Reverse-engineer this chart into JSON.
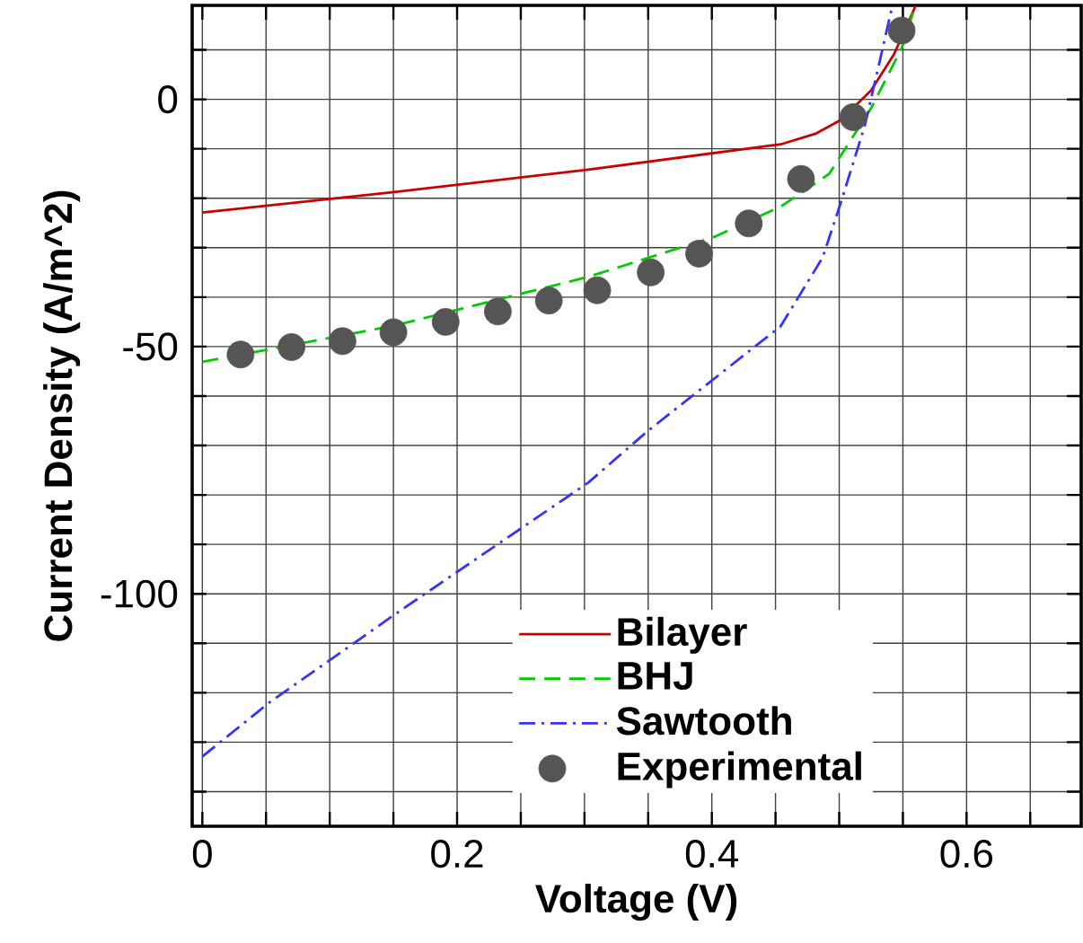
{
  "chart_data": {
    "type": "line",
    "xlabel": "Voltage (V)",
    "ylabel": "Current Density (A/m^2)",
    "xlim": [
      -0.008,
      0.69
    ],
    "ylim": [
      -147,
      19
    ],
    "xticks": [
      0,
      {
        "value": 0.05,
        "label": null
      },
      {
        "value": 0.1,
        "label": null
      },
      {
        "value": 0.15,
        "label": null
      },
      0.2,
      {
        "value": 0.25,
        "label": null
      },
      {
        "value": 0.3,
        "label": null
      },
      {
        "value": 0.35,
        "label": null
      },
      0.4,
      {
        "value": 0.45,
        "label": null
      },
      {
        "value": 0.5,
        "label": null
      },
      {
        "value": 0.55,
        "label": null
      },
      0.6,
      {
        "value": 0.65,
        "label": null
      }
    ],
    "yticks": [
      {
        "value": -140,
        "label": null
      },
      {
        "value": -130,
        "label": null
      },
      {
        "value": -120,
        "label": null
      },
      {
        "value": -110,
        "label": null
      },
      -100,
      {
        "value": -90,
        "label": null
      },
      {
        "value": -80,
        "label": null
      },
      {
        "value": -70,
        "label": null
      },
      {
        "value": -60,
        "label": null
      },
      -50,
      {
        "value": -40,
        "label": null
      },
      {
        "value": -30,
        "label": null
      },
      {
        "value": -20,
        "label": null
      },
      {
        "value": -10,
        "label": null
      },
      0,
      {
        "value": 10,
        "label": null
      }
    ],
    "grid": true,
    "legend": "bottom right",
    "series": [
      {
        "name": "Bilayer",
        "color": "#cc0000",
        "line_style": "solid",
        "marker": "none",
        "x": [
          0,
          0.152,
          0.303,
          0.454,
          0.482,
          0.501,
          0.525,
          0.543,
          0.56
        ],
        "values": [
          -22.9,
          -18.7,
          -14.2,
          -9.1,
          -6.9,
          -4.2,
          1.8,
          9.1,
          18.9
        ]
      },
      {
        "name": "BHJ",
        "color": "#00cc00",
        "line_style": "dashed",
        "marker": "none",
        "x": [
          0,
          0.15,
          0.303,
          0.402,
          0.454,
          0.492,
          0.525,
          0.549,
          0.558
        ],
        "values": [
          -53.1,
          -45.8,
          -35.9,
          -27.8,
          -21.7,
          -15.1,
          -1.8,
          10.3,
          17.5
        ]
      },
      {
        "name": "Sawtooth",
        "color": "#3333ff",
        "line_style": "dashdot",
        "marker": "none",
        "x": [
          0,
          0.052,
          0.152,
          0.303,
          0.35,
          0.454,
          0.487,
          0.501,
          0.52,
          0.532,
          0.541
        ],
        "values": [
          -132.9,
          -122.1,
          -104,
          -77.5,
          -67,
          -45.9,
          -32.0,
          -21.1,
          -5.4,
          7.9,
          18.1
        ]
      },
      {
        "name": "Experimental",
        "type": "scatter",
        "color": "#555555",
        "marker": "circle",
        "x": [
          0.03,
          0.07,
          0.11,
          0.15,
          0.191,
          0.232,
          0.272,
          0.31,
          0.352,
          0.39,
          0.429,
          0.47,
          0.511,
          0.549
        ],
        "values": [
          -51.6,
          -50.1,
          -48.9,
          -47.1,
          -45.0,
          -42.9,
          -40.7,
          -38.6,
          -35.0,
          -31.2,
          -25.1,
          -16.1,
          -3.6,
          13.9
        ]
      }
    ]
  }
}
